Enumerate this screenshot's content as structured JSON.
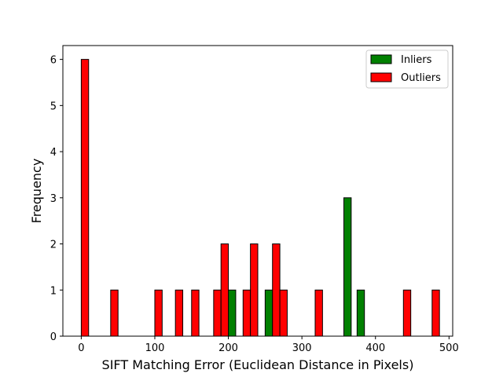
{
  "chart_data": {
    "type": "bar",
    "title": "",
    "xlabel": "SIFT Matching Error (Euclidean Distance in Pixels)",
    "ylabel": "Frequency",
    "xlim": [
      -25,
      505
    ],
    "ylim": [
      0,
      6.3
    ],
    "xticks": [
      0,
      100,
      200,
      300,
      400,
      500
    ],
    "yticks": [
      0,
      1,
      2,
      3,
      4,
      5,
      6
    ],
    "grid": false,
    "legend_position": "top-right",
    "bin_width": 10,
    "series": [
      {
        "name": "Inliers",
        "color": "#008000",
        "bins": [
          {
            "x": 205,
            "count": 1
          },
          {
            "x": 255,
            "count": 1
          },
          {
            "x": 362,
            "count": 3
          },
          {
            "x": 380,
            "count": 1
          }
        ]
      },
      {
        "name": "Outliers",
        "color": "#ff0000",
        "bins": [
          {
            "x": 5,
            "count": 6
          },
          {
            "x": 45,
            "count": 1
          },
          {
            "x": 105,
            "count": 1
          },
          {
            "x": 133,
            "count": 1
          },
          {
            "x": 155,
            "count": 1
          },
          {
            "x": 185,
            "count": 1
          },
          {
            "x": 195,
            "count": 2
          },
          {
            "x": 225,
            "count": 1
          },
          {
            "x": 235,
            "count": 2
          },
          {
            "x": 265,
            "count": 2
          },
          {
            "x": 275,
            "count": 1
          },
          {
            "x": 323,
            "count": 1
          },
          {
            "x": 443,
            "count": 1
          },
          {
            "x": 482,
            "count": 1
          }
        ]
      }
    ]
  }
}
